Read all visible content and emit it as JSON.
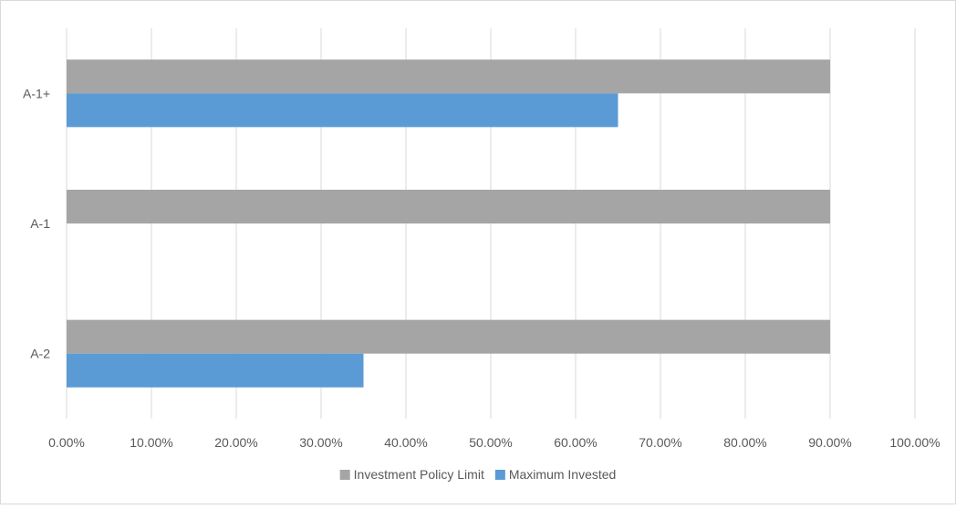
{
  "chart_data": {
    "type": "bar",
    "orientation": "horizontal",
    "categories": [
      "A-1+",
      "A-1",
      "A-2"
    ],
    "series": [
      {
        "name": "Investment Policy Limit",
        "color": "#a5a5a5",
        "values": [
          0.9,
          0.9,
          0.9
        ]
      },
      {
        "name": "Maximum Invested",
        "color": "#5b9bd5",
        "values": [
          0.65,
          0,
          0.35
        ]
      }
    ],
    "xlim": [
      0,
      1
    ],
    "xticks": [
      "0.00%",
      "10.00%",
      "20.00%",
      "30.00%",
      "40.00%",
      "50.00%",
      "60.00%",
      "70.00%",
      "80.00%",
      "90.00%",
      "100.00%"
    ],
    "grid": "vertical",
    "legend_position": "bottom"
  }
}
